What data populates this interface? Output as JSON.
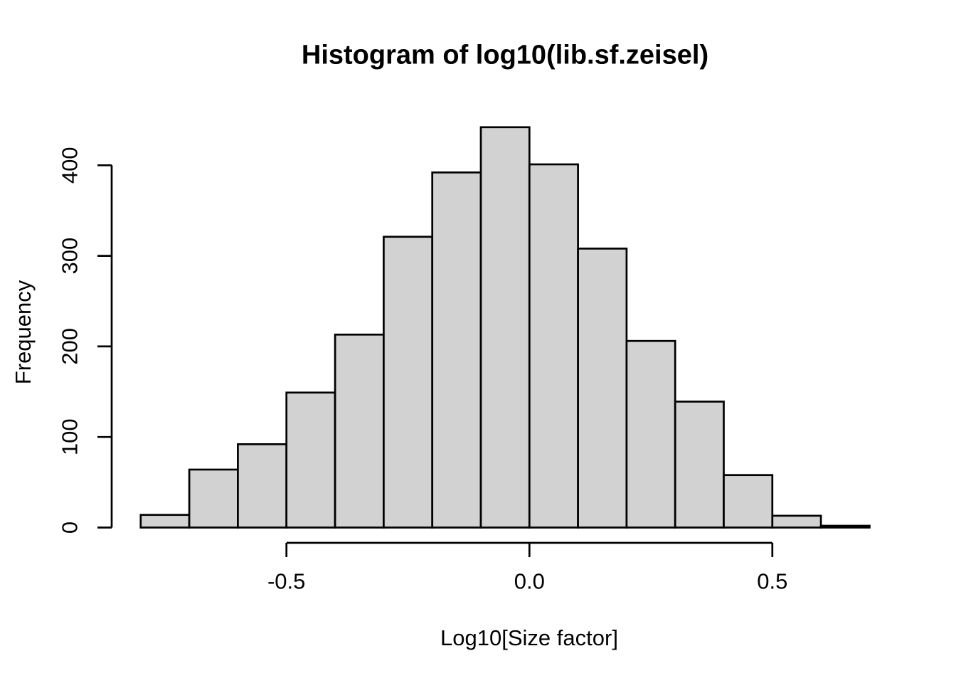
{
  "chart_data": {
    "type": "bar",
    "subtype": "histogram",
    "title": "Histogram of log10(lib.sf.zeisel)",
    "xlabel": "Log10[Size factor]",
    "ylabel": "Frequency",
    "bin_edges": [
      -0.8,
      -0.7,
      -0.6,
      -0.5,
      -0.4,
      -0.3,
      -0.2,
      -0.1,
      0.0,
      0.1,
      0.2,
      0.3,
      0.4,
      0.5,
      0.6,
      0.7
    ],
    "counts": [
      14,
      64,
      92,
      149,
      213,
      321,
      392,
      442,
      401,
      308,
      206,
      139,
      58,
      13,
      2
    ],
    "x_ticks": [
      {
        "value": -0.5,
        "label": "-0.5"
      },
      {
        "value": 0.0,
        "label": "0.0"
      },
      {
        "value": 0.5,
        "label": "0.5"
      }
    ],
    "y_ticks": [
      {
        "value": 0,
        "label": "0"
      },
      {
        "value": 100,
        "label": "100"
      },
      {
        "value": 200,
        "label": "200"
      },
      {
        "value": 300,
        "label": "300"
      },
      {
        "value": 400,
        "label": "400"
      }
    ],
    "xlim_axis_line": [
      -0.5,
      0.5
    ],
    "ylim_axis_line": [
      0,
      400
    ],
    "grid": false,
    "legend": null,
    "colors": {
      "bar_fill": "#D2D2D2",
      "bar_stroke": "#000000",
      "axis": "#000000",
      "text": "#000000",
      "background": "#FFFFFF"
    }
  }
}
